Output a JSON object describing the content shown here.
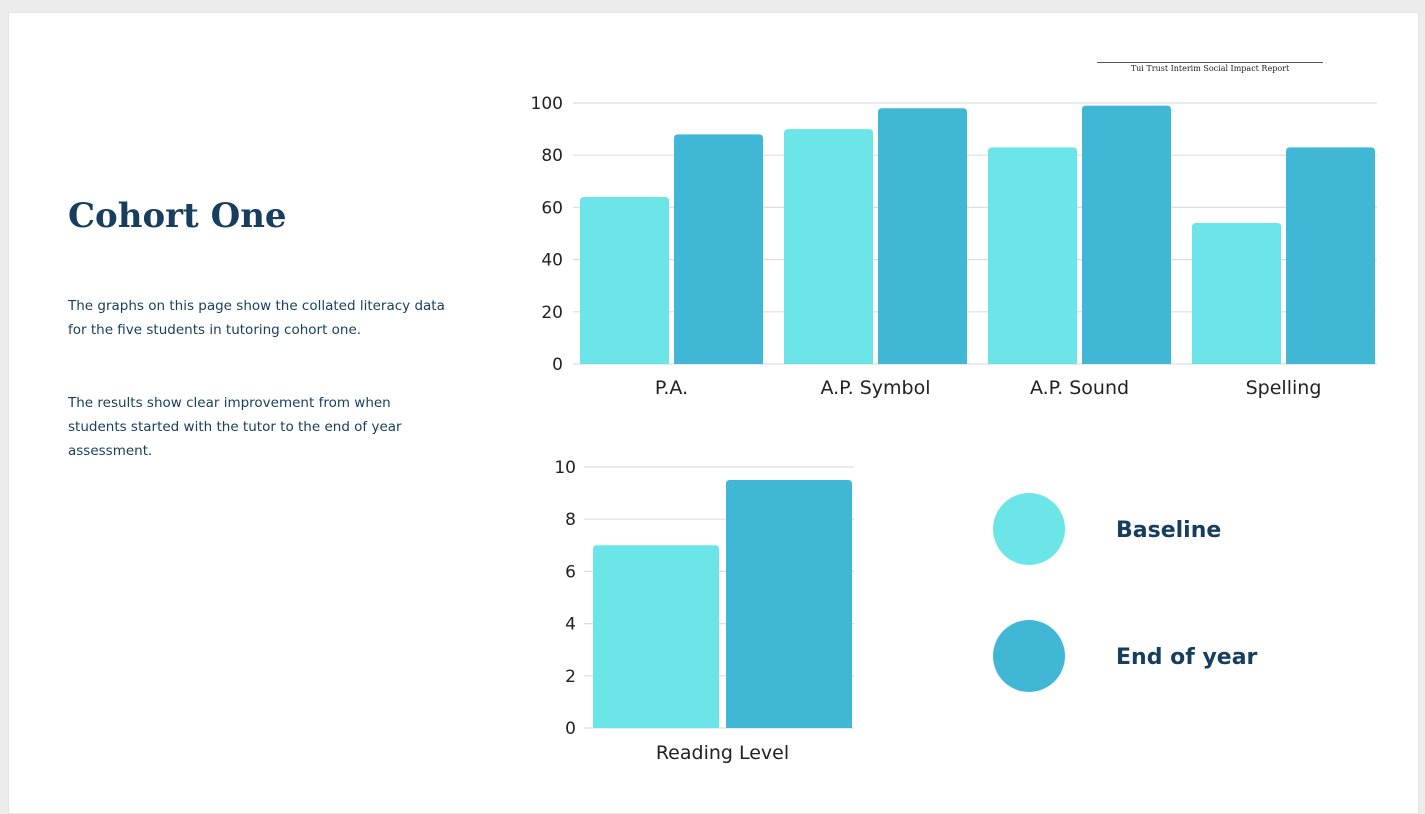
{
  "header": {
    "report_title": "Tui Trust Interim Social Impact Report"
  },
  "text": {
    "title": "Cohort One",
    "paragraph1": "The graphs on this page show the collated literacy data for the five students in tutoring cohort one.",
    "paragraph2": "The results show clear improvement from when students started with the tutor to the end of year assessment."
  },
  "colors": {
    "baseline": "#6ce5e9",
    "end_of_year": "#41b7d6",
    "grid": "#dedede",
    "text": "#173e5e"
  },
  "legend": [
    {
      "label": "Baseline",
      "color": "#6ce5e9"
    },
    {
      "label": "End of year",
      "color": "#41b7d6"
    }
  ],
  "chart_data": [
    {
      "type": "bar",
      "title": "",
      "xlabel": "",
      "ylabel": "",
      "categories": [
        "P.A.",
        "A.P. Symbol",
        "A.P. Sound",
        "Spelling"
      ],
      "series": [
        {
          "name": "Baseline",
          "values": [
            64,
            90,
            83,
            54
          ]
        },
        {
          "name": "End of year",
          "values": [
            88,
            98,
            99,
            83
          ]
        }
      ],
      "yticks": [
        "0",
        "20",
        "40",
        "60",
        "80",
        "100"
      ],
      "ylim": [
        0,
        100
      ],
      "grid": true,
      "legend_position": "bottom-right"
    },
    {
      "type": "bar",
      "title": "",
      "xlabel": "",
      "ylabel": "",
      "categories": [
        "Reading Level"
      ],
      "series": [
        {
          "name": "Baseline",
          "values": [
            7.0
          ]
        },
        {
          "name": "End of year",
          "values": [
            9.5
          ]
        }
      ],
      "yticks": [
        "0",
        "2",
        "4",
        "6",
        "8",
        "10"
      ],
      "ylim": [
        0,
        10
      ],
      "grid": true,
      "legend_position": "right"
    }
  ]
}
